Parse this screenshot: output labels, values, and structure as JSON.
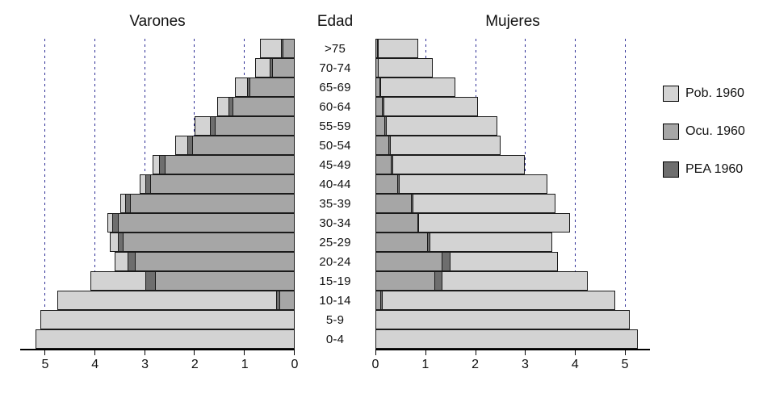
{
  "titles": {
    "left": "Varones",
    "center": "Edad",
    "right": "Mujeres"
  },
  "legend": [
    {
      "key": "pob",
      "label": "Pob. 1960",
      "color": "#d3d3d3"
    },
    {
      "key": "ocu",
      "label": "Ocu. 1960",
      "color": "#a6a6a6"
    },
    {
      "key": "pea",
      "label": "PEA 1960",
      "color": "#6e6e6e"
    }
  ],
  "chart_data": {
    "type": "bar",
    "subtype": "population-pyramid",
    "title": "",
    "age_axis_label": "Edad",
    "age_groups": [
      ">75",
      "70-74",
      "65-69",
      "60-64",
      "55-59",
      "50-54",
      "45-49",
      "40-44",
      "35-39",
      "30-34",
      "25-29",
      "20-24",
      "15-19",
      "10-14",
      "5-9",
      "0-4"
    ],
    "series_names": [
      "Pob. 1960",
      "Ocu. 1960",
      "PEA 1960"
    ],
    "xlim": [
      0,
      5.5
    ],
    "gridlines": [
      1,
      2,
      3,
      4,
      5
    ],
    "gridline_color": "#2e2e96",
    "x_ticks_left": [
      "5",
      "4",
      "3",
      "2",
      "1",
      "0"
    ],
    "x_ticks_right": [
      "0",
      "1",
      "2",
      "3",
      "4",
      "5"
    ],
    "males": {
      "pob": [
        0.7,
        0.8,
        1.2,
        1.55,
        2.0,
        2.4,
        2.85,
        3.1,
        3.5,
        3.75,
        3.7,
        3.6,
        4.1,
        4.75,
        5.1,
        5.2
      ],
      "ocu": [
        0.25,
        0.45,
        0.9,
        1.25,
        1.6,
        2.05,
        2.6,
        2.9,
        3.3,
        3.55,
        3.45,
        3.2,
        2.8,
        0.3,
        0,
        0
      ],
      "pea": [
        0.28,
        0.5,
        0.95,
        1.32,
        1.7,
        2.15,
        2.72,
        3.0,
        3.4,
        3.65,
        3.55,
        3.35,
        3.0,
        0.38,
        0,
        0
      ]
    },
    "females": {
      "pob": [
        0.85,
        1.15,
        1.6,
        2.05,
        2.45,
        2.5,
        3.0,
        3.45,
        3.6,
        3.9,
        3.55,
        3.65,
        4.25,
        4.8,
        5.1,
        5.25
      ],
      "ocu": [
        0.05,
        0.06,
        0.1,
        0.15,
        0.2,
        0.28,
        0.33,
        0.45,
        0.72,
        0.85,
        1.05,
        1.35,
        1.2,
        0.12,
        0,
        0
      ],
      "pea": [
        0.06,
        0.07,
        0.12,
        0.17,
        0.22,
        0.3,
        0.36,
        0.48,
        0.76,
        0.88,
        1.1,
        1.5,
        1.35,
        0.15,
        0,
        0
      ]
    }
  }
}
